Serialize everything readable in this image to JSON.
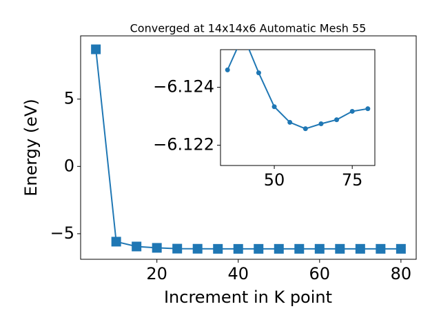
{
  "chart_data": [
    {
      "type": "line",
      "title": "Converged at 14x14x6 Automatic Mesh 55",
      "x_label": "Increment in K point",
      "y_label": "Energy (eV)",
      "x": [
        5,
        10,
        15,
        20,
        25,
        30,
        35,
        40,
        45,
        50,
        55,
        60,
        65,
        70,
        75,
        80
      ],
      "values": [
        8.7,
        -5.59,
        -5.95,
        -6.05,
        -6.11,
        -6.118,
        -6.1246,
        -6.1258,
        -6.1245,
        -6.12333,
        -6.12279,
        -6.12257,
        -6.12274,
        -6.12288,
        -6.12317,
        -6.12326
      ],
      "color": "#1f77b4",
      "marker": "square",
      "xlim": [
        1.25,
        83.75
      ],
      "ylim": [
        -6.9,
        9.7
      ],
      "xticks": [
        20,
        40,
        60,
        80
      ],
      "yticks": [
        {
          "value": -5,
          "label": "−5"
        },
        0,
        5
      ]
    },
    {
      "type": "line",
      "x": [
        35,
        40,
        45,
        50,
        55,
        60,
        65,
        70,
        75,
        80
      ],
      "values": [
        -6.1246,
        -6.1258,
        -6.1245,
        -6.12333,
        -6.12279,
        -6.12257,
        -6.12274,
        -6.12288,
        -6.12317,
        -6.12326
      ],
      "color": "#1f77b4",
      "marker": "circle",
      "xlim": [
        32.75,
        82.25
      ],
      "ylim": [
        -6.1213,
        -6.1253
      ],
      "xticks": [
        50,
        75
      ],
      "yticks": [
        {
          "value": -6.124,
          "label": "−6.124"
        },
        {
          "value": -6.122,
          "label": "−6.122"
        }
      ]
    }
  ]
}
